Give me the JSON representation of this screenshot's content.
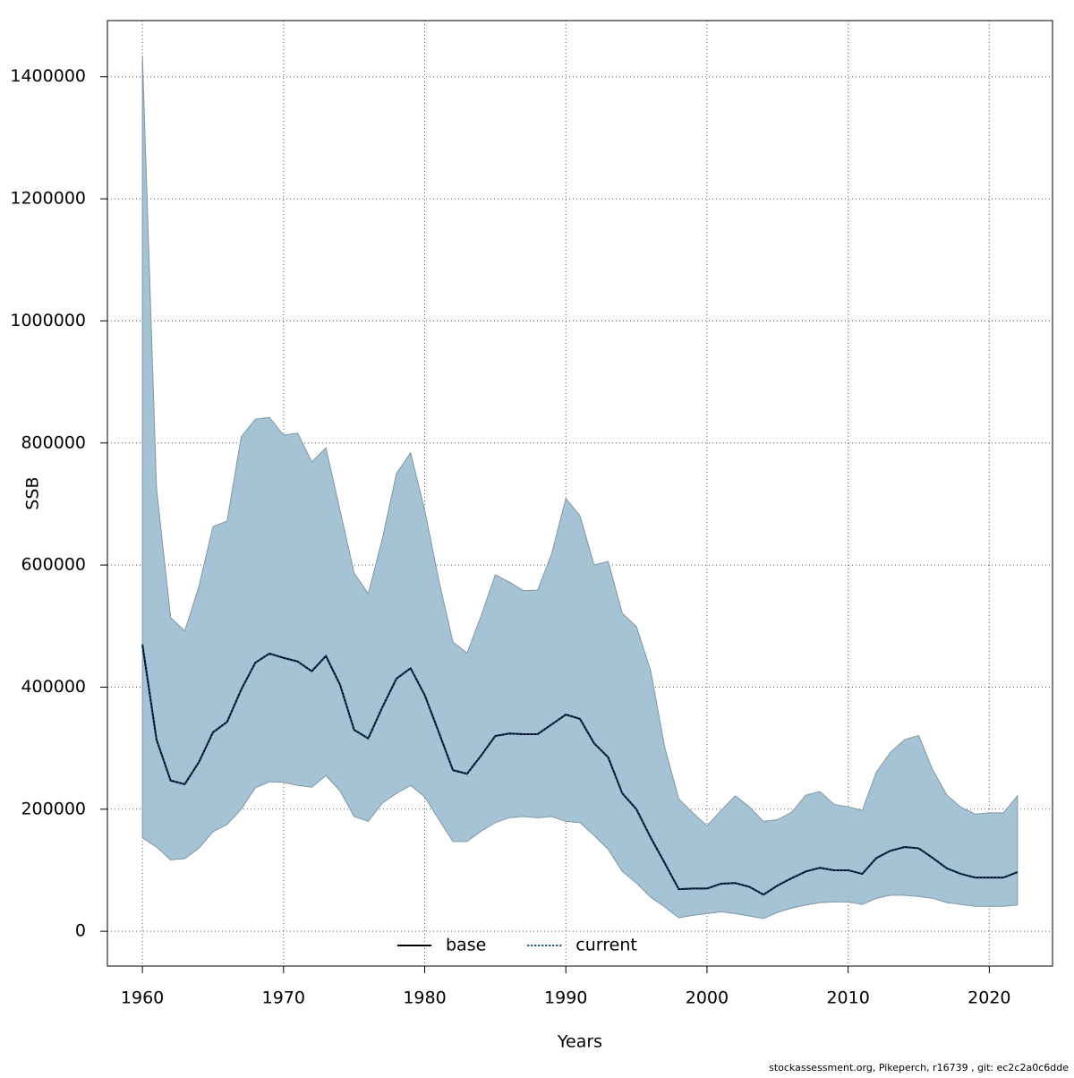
{
  "chart_data": {
    "type": "line",
    "xlabel": "Years",
    "ylabel": "SSB",
    "footer": "stockassessment.org, Pikeperch, r16739 , git: ec2c2a0c6dde",
    "grid": true,
    "legend": "bottom",
    "x": [
      1960,
      1961,
      1962,
      1963,
      1964,
      1965,
      1966,
      1967,
      1968,
      1969,
      1970,
      1971,
      1972,
      1973,
      1974,
      1975,
      1976,
      1977,
      1978,
      1979,
      1980,
      1981,
      1982,
      1983,
      1984,
      1985,
      1986,
      1987,
      1988,
      1989,
      1990,
      1991,
      1992,
      1993,
      1994,
      1995,
      1996,
      1997,
      1998,
      1999,
      2000,
      2001,
      2002,
      2003,
      2004,
      2005,
      2006,
      2007,
      2008,
      2009,
      2010,
      2011,
      2012,
      2013,
      2014,
      2015,
      2016,
      2017,
      2018,
      2019,
      2020,
      2021,
      2022
    ],
    "xlim": [
      1957.52,
      2024.48
    ],
    "xticks": [
      1960,
      1970,
      1980,
      1990,
      2000,
      2010,
      2020
    ],
    "ylim": [
      -57000,
      1492000
    ],
    "yticks": [
      0,
      200000,
      400000,
      600000,
      800000,
      1000000,
      1200000,
      1400000
    ],
    "band": {
      "color": "#a5c3d4",
      "upper": [
        1435000,
        726000,
        514000,
        492000,
        565000,
        663000,
        672000,
        810000,
        839000,
        842000,
        813000,
        816000,
        769000,
        792000,
        690000,
        587000,
        553000,
        643000,
        750000,
        784000,
        690000,
        575000,
        474000,
        456000,
        517000,
        584000,
        572000,
        558000,
        559000,
        619000,
        709000,
        681000,
        600000,
        606000,
        521000,
        499000,
        428000,
        302000,
        217000,
        194000,
        173000,
        198000,
        222000,
        204000,
        180000,
        183000,
        195000,
        223000,
        229000,
        208000,
        204000,
        198000,
        261000,
        293000,
        314000,
        321000,
        264000,
        223000,
        203000,
        192000,
        194000,
        194000,
        222000
      ],
      "lower": [
        153000,
        138000,
        117000,
        119000,
        136000,
        163000,
        175000,
        200000,
        235000,
        245000,
        244000,
        239000,
        236000,
        255000,
        230000,
        188000,
        180000,
        210000,
        226000,
        239000,
        220000,
        183000,
        147000,
        147000,
        164000,
        178000,
        186000,
        188000,
        186000,
        188000,
        180000,
        178000,
        157000,
        134000,
        98000,
        79000,
        56000,
        40000,
        22000,
        26000,
        29000,
        32000,
        29000,
        25000,
        21000,
        31000,
        38000,
        43000,
        47000,
        48000,
        48000,
        44000,
        54000,
        59000,
        59000,
        57000,
        54000,
        47000,
        44000,
        41000,
        41000,
        41000,
        43000
      ]
    },
    "series": [
      {
        "name": "base",
        "color": "#000000",
        "style": "solid",
        "values": [
          470000,
          314000,
          247000,
          241000,
          277000,
          326000,
          343000,
          396000,
          440000,
          455000,
          448000,
          442000,
          426000,
          451000,
          404000,
          330000,
          316000,
          367000,
          414000,
          431000,
          387000,
          326000,
          264000,
          258000,
          288000,
          320000,
          324000,
          323000,
          323000,
          339000,
          355000,
          348000,
          308000,
          285000,
          226000,
          200000,
          154000,
          112000,
          69000,
          70000,
          70000,
          78000,
          79000,
          73000,
          60000,
          75000,
          87000,
          98000,
          104000,
          100000,
          100000,
          94000,
          120000,
          132000,
          138000,
          136000,
          120000,
          103000,
          94000,
          88000,
          88000,
          88000,
          97000
        ]
      },
      {
        "name": "current",
        "color": "#00467a",
        "style": "dotted",
        "values": [
          470000,
          314000,
          247000,
          241000,
          277000,
          326000,
          343000,
          396000,
          440000,
          455000,
          448000,
          442000,
          426000,
          451000,
          404000,
          330000,
          316000,
          367000,
          414000,
          431000,
          387000,
          326000,
          264000,
          258000,
          288000,
          320000,
          324000,
          323000,
          323000,
          339000,
          355000,
          348000,
          308000,
          285000,
          226000,
          200000,
          154000,
          112000,
          69000,
          70000,
          70000,
          78000,
          79000,
          73000,
          60000,
          75000,
          87000,
          98000,
          104000,
          100000,
          100000,
          94000,
          120000,
          132000,
          138000,
          136000,
          120000,
          103000,
          94000,
          88000,
          88000,
          88000,
          97000
        ]
      }
    ]
  }
}
